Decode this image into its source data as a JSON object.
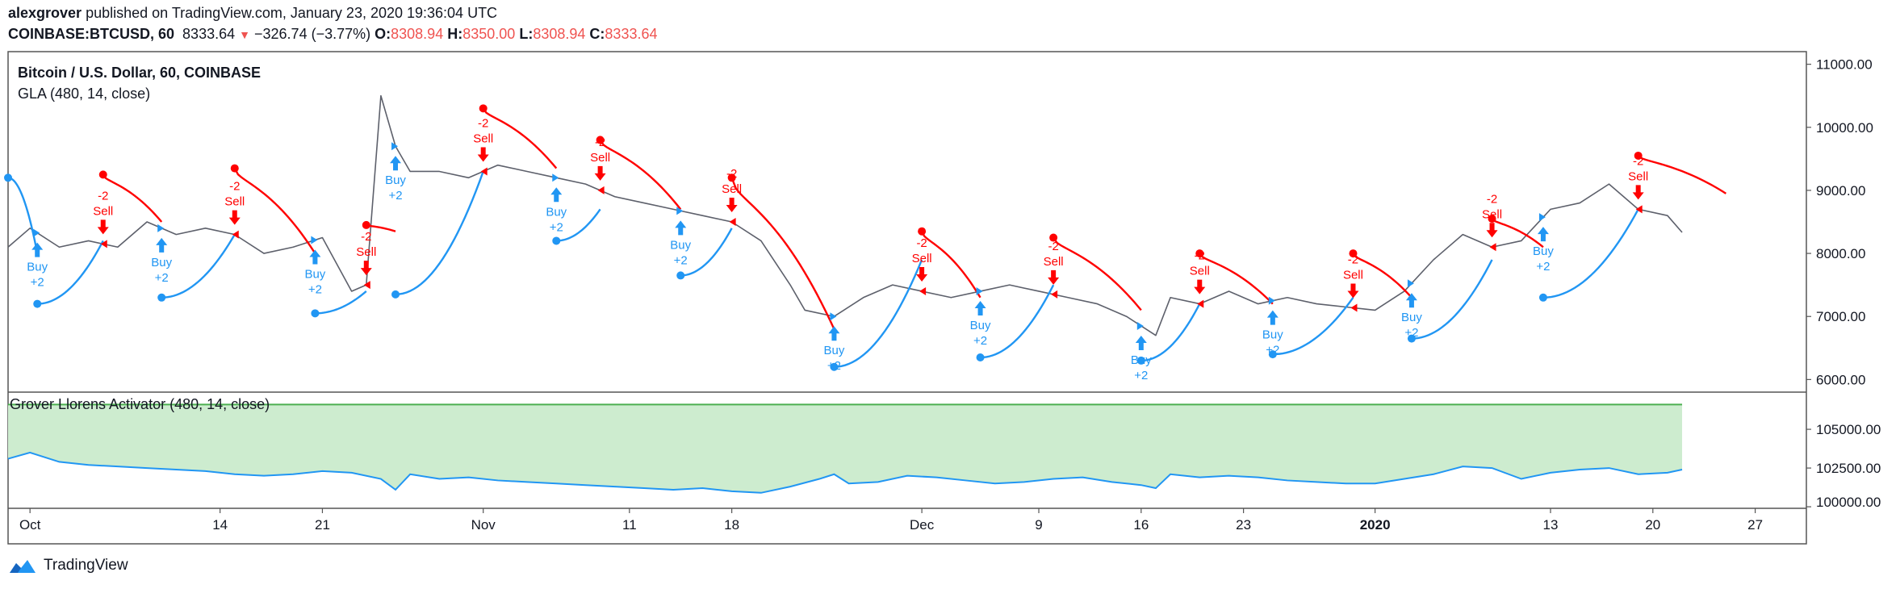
{
  "header": {
    "author": "alexgrover",
    "published": " published on TradingView.com, January 23, 2020 19:36:04 UTC",
    "symbol": "COINBASE:BTCUSD, 60",
    "last": "8333.64",
    "change": "−326.74 (−3.77%)",
    "o_label": "O:",
    "o_value": "8308.94",
    "h_label": "H:",
    "h_value": "8350.00",
    "l_label": "L:",
    "l_value": "8308.94",
    "c_label": "C:",
    "c_value": "8333.64"
  },
  "legend": {
    "title": "Bitcoin / U.S. Dollar, 60, COINBASE",
    "indicator": "GLA (480, 14, close)",
    "lower_indicator": "Grover Llorens Activator (480, 14, close)"
  },
  "footer": {
    "brand": "TradingView"
  },
  "colors": {
    "price": "#5d606b",
    "gla_bull": "#2196f3",
    "gla_bear": "#ff0000",
    "activator_line": "#2196f3",
    "activator_fill": "#cdeccf",
    "activator_top": "#4caf50",
    "grid_border": "#555555"
  },
  "chart_data": [
    {
      "type": "line",
      "title": "Bitcoin / U.S. Dollar, 60, COINBASE",
      "y_axis_ticks": [
        "11000.00",
        "10000.00",
        "9000.00",
        "8000.00",
        "7000.00",
        "6000.00"
      ],
      "y_ticks_values": [
        11000,
        10000,
        9000,
        8000,
        7000,
        6000
      ],
      "ylim": [
        5800,
        11200
      ],
      "x_axis_ticks": [
        "Oct",
        "14",
        "21",
        "Nov",
        "11",
        "18",
        "Dec",
        "9",
        "16",
        "23",
        "2020",
        "13",
        "20",
        "27"
      ],
      "x_ticks_days": [
        0,
        13,
        20,
        31,
        41,
        48,
        61,
        69,
        76,
        83,
        92,
        104,
        111,
        118
      ],
      "xlim_days": [
        -1.5,
        121.5
      ],
      "price_series": {
        "name": "BTCUSD",
        "x_days": [
          -1.5,
          0,
          2,
          4,
          6,
          8,
          10,
          12,
          14,
          16,
          18,
          20,
          22,
          23,
          24,
          25,
          26,
          28,
          30,
          32,
          34,
          36,
          38,
          40,
          42,
          44,
          46,
          48,
          50,
          52,
          53,
          55,
          57,
          59,
          61,
          63,
          65,
          67,
          69,
          71,
          73,
          75,
          77,
          78,
          80,
          82,
          84,
          86,
          88,
          90,
          92,
          94,
          96,
          98,
          100,
          102,
          104,
          106,
          108,
          110,
          112,
          113
        ],
        "y": [
          8100,
          8400,
          8100,
          8200,
          8100,
          8500,
          8300,
          8400,
          8300,
          8000,
          8100,
          8250,
          7400,
          7500,
          10500,
          9700,
          9300,
          9300,
          9200,
          9400,
          9300,
          9200,
          9100,
          8900,
          8800,
          8700,
          8600,
          8500,
          8200,
          7500,
          7100,
          7000,
          7300,
          7500,
          7400,
          7300,
          7400,
          7500,
          7400,
          7300,
          7200,
          7000,
          6700,
          7300,
          7200,
          7400,
          7200,
          7300,
          7200,
          7150,
          7100,
          7400,
          7900,
          8300,
          8100,
          8200,
          8700,
          8800,
          9100,
          8700,
          8600,
          8334
        ]
      },
      "gla_segments": [
        {
          "dir": "buy",
          "x_days": [
            -1.5,
            0.5
          ],
          "y": [
            9200,
            8000
          ]
        },
        {
          "dir": "buy",
          "x_days": [
            0.5,
            5
          ],
          "y": [
            7200,
            8200
          ]
        },
        {
          "dir": "sell",
          "x_days": [
            5,
            9
          ],
          "y": [
            9250,
            8500
          ]
        },
        {
          "dir": "buy",
          "x_days": [
            9,
            14
          ],
          "y": [
            7300,
            8300
          ]
        },
        {
          "dir": "sell",
          "x_days": [
            14,
            19.5
          ],
          "y": [
            9350,
            8000
          ]
        },
        {
          "dir": "buy",
          "x_days": [
            19.5,
            23
          ],
          "y": [
            7050,
            7400
          ]
        },
        {
          "dir": "sell",
          "x_days": [
            23,
            25
          ],
          "y": [
            8450,
            8350
          ]
        },
        {
          "dir": "buy",
          "x_days": [
            25,
            31
          ],
          "y": [
            7350,
            9300
          ]
        },
        {
          "dir": "sell",
          "x_days": [
            31,
            36
          ],
          "y": [
            10300,
            9350
          ]
        },
        {
          "dir": "buy",
          "x_days": [
            36,
            39
          ],
          "y": [
            8200,
            8700
          ]
        },
        {
          "dir": "sell",
          "x_days": [
            39,
            44.5
          ],
          "y": [
            9800,
            8700
          ]
        },
        {
          "dir": "buy",
          "x_days": [
            44.5,
            48
          ],
          "y": [
            7650,
            8400
          ]
        },
        {
          "dir": "sell",
          "x_days": [
            48,
            55
          ],
          "y": [
            9200,
            6800
          ]
        },
        {
          "dir": "buy",
          "x_days": [
            55,
            61
          ],
          "y": [
            6200,
            7900
          ]
        },
        {
          "dir": "sell",
          "x_days": [
            61,
            65
          ],
          "y": [
            8350,
            7300
          ]
        },
        {
          "dir": "buy",
          "x_days": [
            65,
            70
          ],
          "y": [
            6350,
            7500
          ]
        },
        {
          "dir": "sell",
          "x_days": [
            70,
            76
          ],
          "y": [
            8250,
            7100
          ]
        },
        {
          "dir": "buy",
          "x_days": [
            76,
            80
          ],
          "y": [
            6300,
            7200
          ]
        },
        {
          "dir": "sell",
          "x_days": [
            80,
            85
          ],
          "y": [
            8000,
            7200
          ]
        },
        {
          "dir": "buy",
          "x_days": [
            85,
            90.5
          ],
          "y": [
            6400,
            7300
          ]
        },
        {
          "dir": "sell",
          "x_days": [
            90.5,
            94.5
          ],
          "y": [
            8000,
            7300
          ]
        },
        {
          "dir": "buy",
          "x_days": [
            94.5,
            100
          ],
          "y": [
            6650,
            7900
          ]
        },
        {
          "dir": "sell",
          "x_days": [
            100,
            103.5
          ],
          "y": [
            8550,
            8100
          ]
        },
        {
          "dir": "buy",
          "x_days": [
            103.5,
            110
          ],
          "y": [
            7300,
            8700
          ]
        },
        {
          "dir": "sell",
          "x_days": [
            110,
            116
          ],
          "y": [
            9550,
            8950
          ]
        }
      ],
      "signals": [
        {
          "kind": "buy",
          "x_day": 0.5,
          "text1": "Buy",
          "text2": "+2"
        },
        {
          "kind": "sell",
          "x_day": 5,
          "text1": "-2",
          "text2": "Sell"
        },
        {
          "kind": "buy",
          "x_day": 9,
          "text1": "Buy",
          "text2": "+2"
        },
        {
          "kind": "sell",
          "x_day": 14,
          "text1": "-2",
          "text2": "Sell"
        },
        {
          "kind": "buy",
          "x_day": 19.5,
          "text1": "Buy",
          "text2": "+2"
        },
        {
          "kind": "sell",
          "x_day": 23,
          "text1": "-2",
          "text2": "Sell"
        },
        {
          "kind": "buy",
          "x_day": 25,
          "text1": "Buy",
          "text2": "+2"
        },
        {
          "kind": "sell",
          "x_day": 31,
          "text1": "-2",
          "text2": "Sell"
        },
        {
          "kind": "buy",
          "x_day": 36,
          "text1": "Buy",
          "text2": "+2"
        },
        {
          "kind": "sell",
          "x_day": 39,
          "text1": "-2",
          "text2": "Sell"
        },
        {
          "kind": "buy",
          "x_day": 44.5,
          "text1": "Buy",
          "text2": "+2"
        },
        {
          "kind": "sell",
          "x_day": 48,
          "text1": "-2",
          "text2": "Sell"
        },
        {
          "kind": "buy",
          "x_day": 55,
          "text1": "Buy",
          "text2": "+2"
        },
        {
          "kind": "sell",
          "x_day": 61,
          "text1": "-2",
          "text2": "Sell"
        },
        {
          "kind": "buy",
          "x_day": 65,
          "text1": "Buy",
          "text2": "+2"
        },
        {
          "kind": "sell",
          "x_day": 70,
          "text1": "-2",
          "text2": "Sell"
        },
        {
          "kind": "buy",
          "x_day": 76,
          "text1": "Buy",
          "text2": "+2"
        },
        {
          "kind": "sell",
          "x_day": 80,
          "text1": "-2",
          "text2": "Sell"
        },
        {
          "kind": "buy",
          "x_day": 85,
          "text1": "Buy",
          "text2": "+2"
        },
        {
          "kind": "sell",
          "x_day": 90.5,
          "text1": "-2",
          "text2": "Sell"
        },
        {
          "kind": "buy",
          "x_day": 94.5,
          "text1": "Buy",
          "text2": "+2"
        },
        {
          "kind": "sell",
          "x_day": 100,
          "text1": "-2",
          "text2": "Sell"
        },
        {
          "kind": "buy",
          "x_day": 103.5,
          "text1": "Buy",
          "text2": "+2"
        },
        {
          "kind": "sell",
          "x_day": 110,
          "text1": "-2",
          "text2": "Sell"
        }
      ]
    },
    {
      "type": "area",
      "title": "Grover Llorens Activator (480, 14, close)",
      "y_axis_ticks": [
        "105000.00",
        "102500.00",
        "100000.00"
      ],
      "y_ticks_values": [
        105000,
        102500,
        100000
      ],
      "ylim": [
        99900,
        107400
      ],
      "fill_top": 106600,
      "series": {
        "name": "Grover Llorens Activator",
        "x_days": [
          -1.5,
          0,
          2,
          4,
          6,
          8,
          10,
          12,
          14,
          16,
          18,
          20,
          22,
          24,
          25,
          26,
          28,
          30,
          32,
          34,
          36,
          38,
          40,
          42,
          44,
          46,
          48,
          50,
          52,
          54,
          55,
          56,
          58,
          60,
          62,
          64,
          66,
          68,
          70,
          72,
          74,
          76,
          77,
          78,
          80,
          82,
          84,
          86,
          88,
          90,
          92,
          94,
          96,
          98,
          100,
          102,
          104,
          106,
          108,
          110,
          112,
          113
        ],
        "y": [
          103100,
          103500,
          102900,
          102700,
          102600,
          102500,
          102400,
          102300,
          102100,
          102000,
          102100,
          102300,
          102200,
          101800,
          101100,
          102100,
          101800,
          101900,
          101700,
          101600,
          101500,
          101400,
          101300,
          101200,
          101100,
          101200,
          101000,
          100900,
          101300,
          101800,
          102100,
          101500,
          101600,
          102000,
          101900,
          101700,
          101500,
          101600,
          101800,
          101900,
          101600,
          101400,
          101200,
          102100,
          101900,
          102000,
          101900,
          101700,
          101600,
          101500,
          101500,
          101800,
          102100,
          102600,
          102500,
          101800,
          102200,
          102400,
          102500,
          102100,
          102200,
          102400
        ]
      }
    }
  ]
}
